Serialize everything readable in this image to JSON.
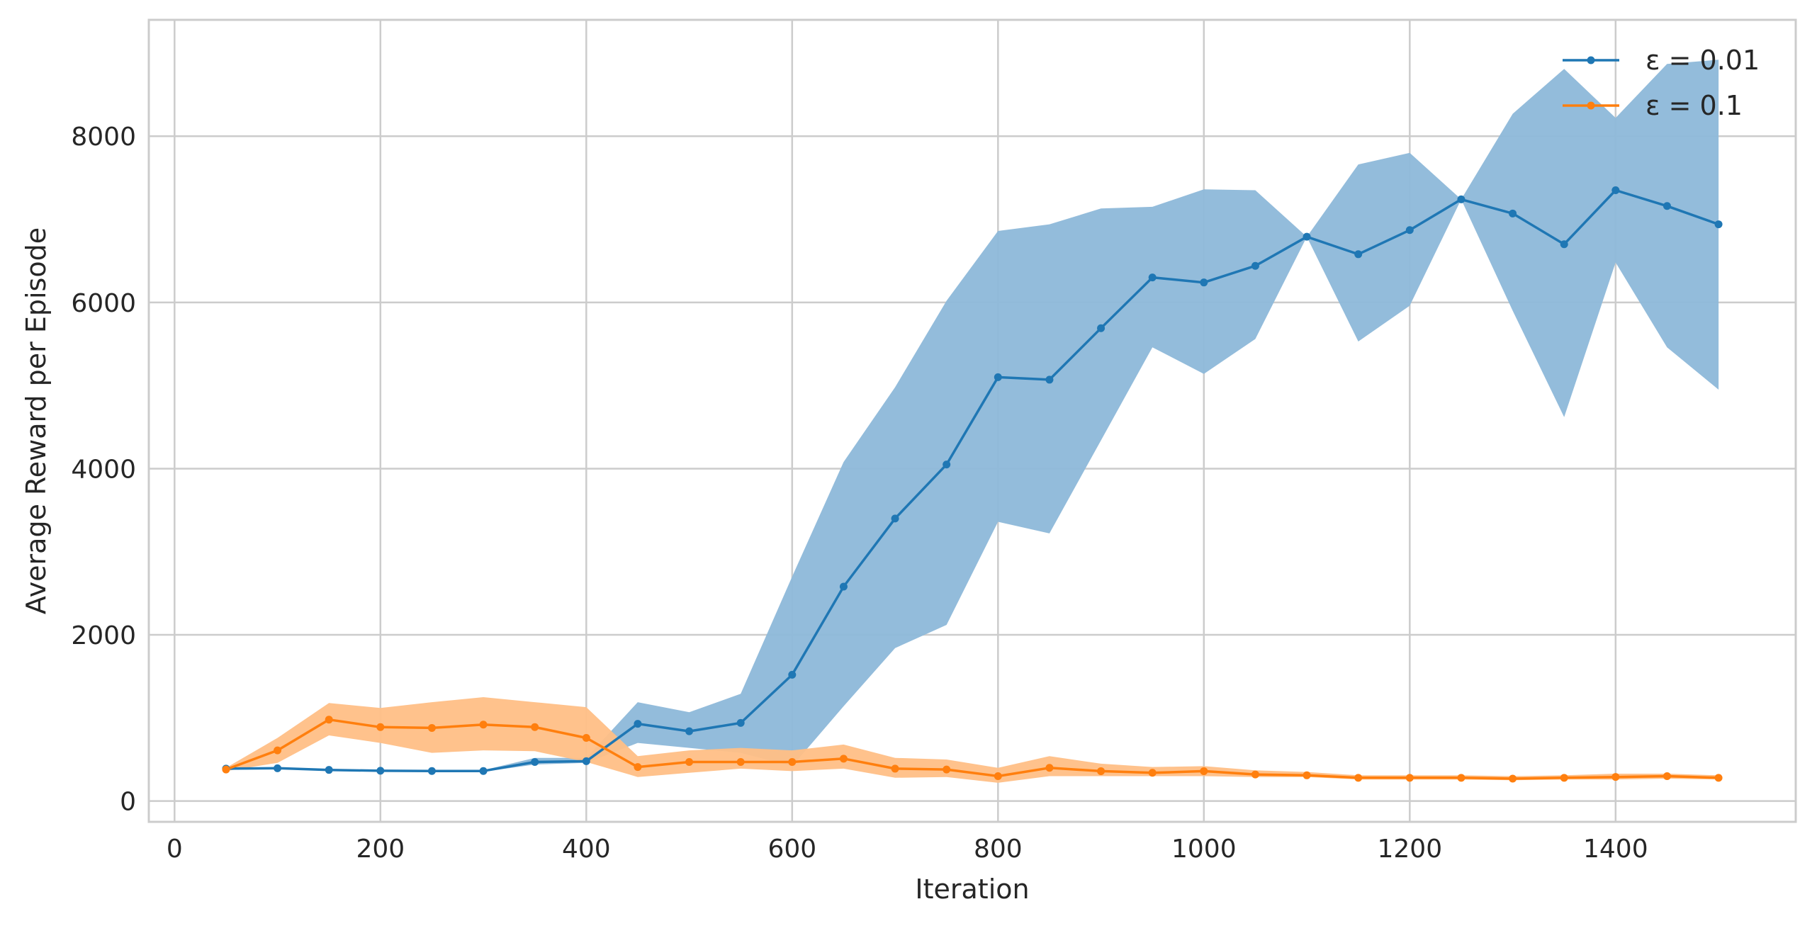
{
  "chart_data": {
    "type": "line",
    "xlabel": "Iteration",
    "ylabel": "Average Reward per Episode",
    "xlim": [
      -25,
      1575
    ],
    "ylim": [
      -250,
      9400
    ],
    "xticks": [
      0,
      200,
      400,
      600,
      800,
      1000,
      1200,
      1400
    ],
    "yticks": [
      0,
      2000,
      4000,
      6000,
      8000
    ],
    "grid": true,
    "legend_position": "top-right",
    "x": [
      50,
      100,
      150,
      200,
      250,
      300,
      350,
      400,
      450,
      500,
      550,
      600,
      650,
      700,
      750,
      800,
      850,
      900,
      950,
      1000,
      1050,
      1100,
      1150,
      1200,
      1250,
      1300,
      1350,
      1400,
      1450,
      1500
    ],
    "series": [
      {
        "name": "ε = 0.01",
        "color": "#1f77b4",
        "band_color": "#8db8d9",
        "values": [
          390,
          395,
          375,
          365,
          362,
          362,
          470,
          480,
          930,
          840,
          940,
          1520,
          2580,
          3400,
          4050,
          5100,
          5070,
          5690,
          6300,
          6240,
          6440,
          6790,
          6580,
          6870,
          7240,
          7070,
          6700,
          7350,
          7160,
          6940
        ],
        "upper": [
          400,
          405,
          385,
          375,
          372,
          372,
          520,
          520,
          1190,
          1070,
          1290,
          2700,
          4080,
          4980,
          6020,
          6860,
          6940,
          7130,
          7150,
          7360,
          7350,
          6790,
          7660,
          7800,
          7240,
          8270,
          8810,
          8220,
          8870,
          8920
        ],
        "lower": [
          380,
          385,
          365,
          355,
          352,
          352,
          440,
          460,
          700,
          640,
          580,
          420,
          1140,
          1840,
          2120,
          3360,
          3220,
          4340,
          5460,
          5140,
          5560,
          6790,
          5530,
          5960,
          7240,
          5900,
          4620,
          6480,
          5460,
          4950
        ]
      },
      {
        "name": "ε = 0.1",
        "color": "#ff7f0e",
        "band_color": "#ffbf86",
        "values": [
          380,
          610,
          980,
          890,
          880,
          920,
          890,
          760,
          410,
          470,
          470,
          470,
          510,
          390,
          380,
          300,
          400,
          360,
          340,
          360,
          320,
          310,
          280,
          280,
          280,
          270,
          280,
          290,
          300,
          280
        ],
        "upper": [
          400,
          760,
          1180,
          1120,
          1190,
          1250,
          1190,
          1130,
          540,
          610,
          640,
          610,
          680,
          520,
          500,
          400,
          540,
          450,
          410,
          420,
          370,
          350,
          310,
          310,
          310,
          300,
          310,
          330,
          330,
          310
        ],
        "lower": [
          360,
          460,
          790,
          700,
          580,
          610,
          600,
          470,
          290,
          340,
          390,
          360,
          390,
          280,
          290,
          220,
          300,
          300,
          300,
          300,
          290,
          290,
          260,
          260,
          260,
          250,
          260,
          260,
          270,
          260
        ]
      }
    ]
  }
}
